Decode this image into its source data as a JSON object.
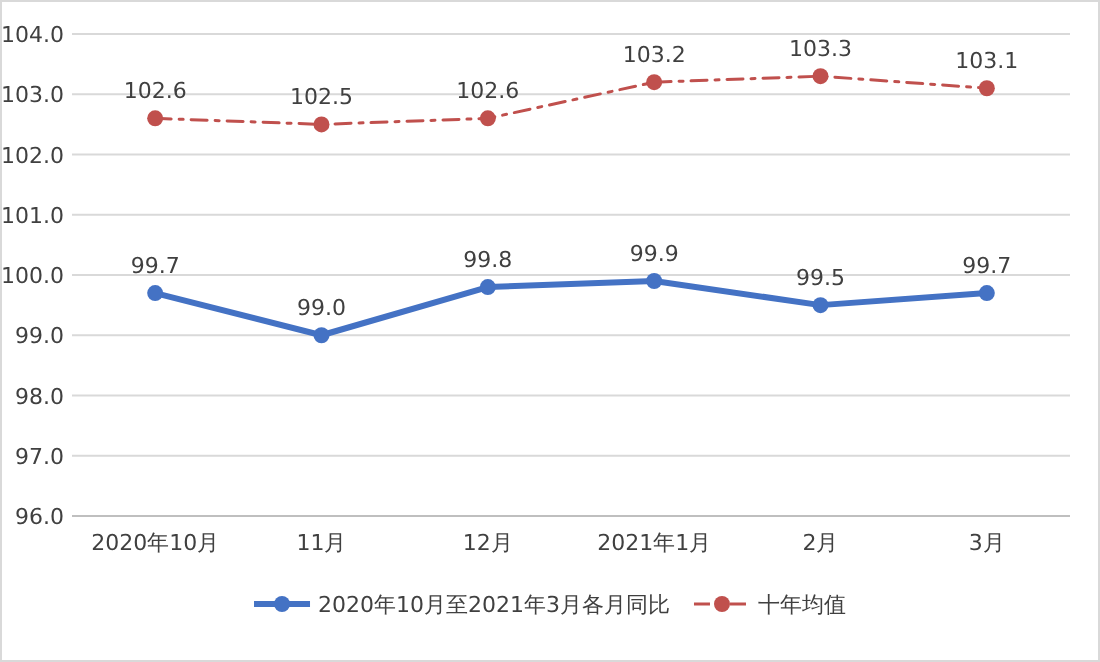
{
  "chart_data": {
    "type": "line",
    "categories": [
      "2020年10月",
      "11月",
      "12月",
      "2021年1月",
      "2月",
      "3月"
    ],
    "ylim": [
      96,
      104
    ],
    "yticks": [
      {
        "value": 96,
        "label": "96.0"
      },
      {
        "value": 97,
        "label": "97.0"
      },
      {
        "value": 98,
        "label": "98.0"
      },
      {
        "value": 99,
        "label": "99.0"
      },
      {
        "value": 100,
        "label": "100.0"
      },
      {
        "value": 101,
        "label": "101.0"
      },
      {
        "value": 102,
        "label": "102.0"
      },
      {
        "value": 103,
        "label": "103.0"
      },
      {
        "value": 104,
        "label": "104.0"
      }
    ],
    "grid": "y",
    "legend": "bottom",
    "marker": "circle",
    "series": [
      {
        "name": "2020年10月至2021年3月各月同比",
        "color": "#4472c4",
        "line_style": "solid",
        "values": [
          99.7,
          99.0,
          99.8,
          99.9,
          99.5,
          99.7
        ],
        "value_labels": [
          "99.7",
          "99.0",
          "99.8",
          "99.9",
          "99.5",
          "99.7"
        ]
      },
      {
        "name": "十年均值",
        "color": "#c0504d",
        "line_style": "dashdot",
        "values": [
          102.6,
          102.5,
          102.6,
          103.2,
          103.3,
          103.1
        ],
        "value_labels": [
          "102.6",
          "102.5",
          "102.6",
          "103.2",
          "103.3",
          "103.1"
        ]
      }
    ]
  }
}
